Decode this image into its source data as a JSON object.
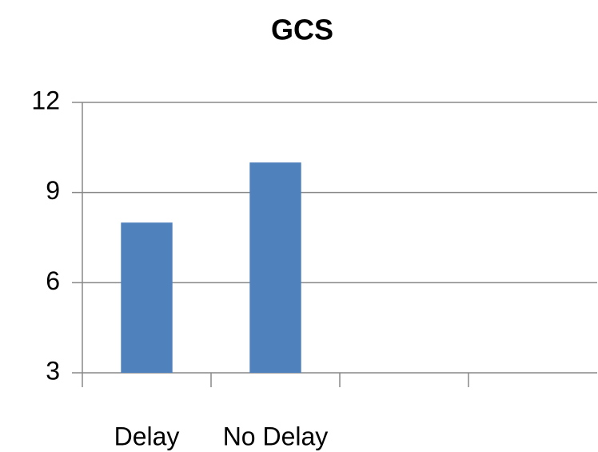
{
  "chart_data": {
    "type": "bar",
    "title": "GCS",
    "categories": [
      "Delay",
      "No Delay",
      null,
      null
    ],
    "values": [
      8,
      10,
      null,
      null
    ],
    "color": "#4f81bd",
    "ylim": [
      3,
      12
    ],
    "yticks": [
      3,
      6,
      9,
      12
    ],
    "grid": true
  }
}
